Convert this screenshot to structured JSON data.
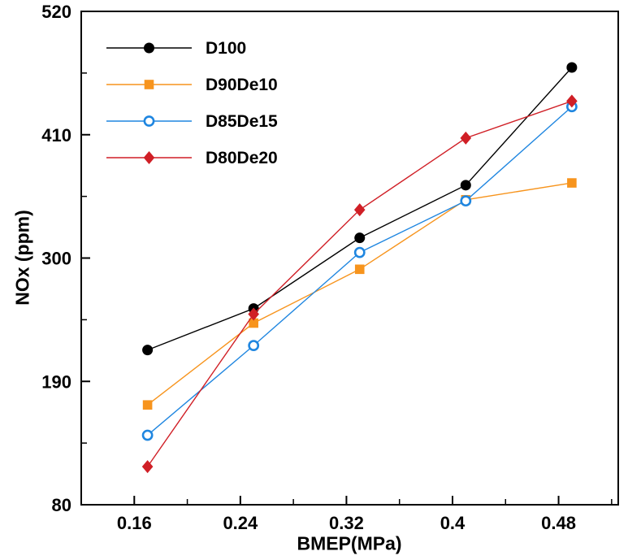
{
  "chart_data": {
    "type": "line",
    "xlabel": "BMEP(MPa)",
    "ylabel": "NOx (ppm)",
    "xlim": [
      0.12,
      0.525
    ],
    "ylim": [
      80,
      520
    ],
    "x_ticks": [
      0.16,
      0.24,
      0.32,
      0.4,
      0.48
    ],
    "x_tick_labels": [
      "0.16",
      "0.24",
      "0.32",
      "0.4",
      "0.48"
    ],
    "y_ticks": [
      80,
      190,
      300,
      410,
      520
    ],
    "y_tick_labels": [
      "80",
      "190",
      "300",
      "410",
      "520"
    ],
    "x_minor_step": 0.04,
    "y_minor_step": 55,
    "x": [
      0.17,
      0.25,
      0.33,
      0.41,
      0.49
    ],
    "series": [
      {
        "name": "D100",
        "color": "#000000",
        "marker": "circle",
        "marker_fill": "filled",
        "values": [
          218,
          255,
          318,
          365,
          470
        ]
      },
      {
        "name": "D90De10",
        "color": "#f7941d",
        "marker": "square",
        "marker_fill": "filled",
        "values": [
          169,
          242,
          290,
          352,
          367
        ]
      },
      {
        "name": "D85De15",
        "color": "#1f86e0",
        "marker": "circle",
        "marker_fill": "open",
        "values": [
          142,
          222,
          305,
          351,
          435
        ]
      },
      {
        "name": "D80De20",
        "color": "#d01f26",
        "marker": "diamond",
        "marker_fill": "filled",
        "values": [
          114,
          250,
          343,
          407,
          440
        ]
      }
    ],
    "legend_position": "top-left",
    "grid": false
  },
  "colors": {
    "background": "#ffffff",
    "frame": "#000000"
  }
}
